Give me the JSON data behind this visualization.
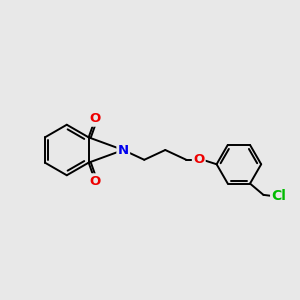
{
  "background_color": "#e8e8e8",
  "bond_color": "#000000",
  "N_color": "#0000ee",
  "O_color": "#ee0000",
  "Cl_color": "#00bb00",
  "line_width": 1.4,
  "font_size": 9.5,
  "figsize": [
    3.0,
    3.0
  ],
  "dpi": 100,
  "xlim": [
    0,
    10
  ],
  "ylim": [
    1,
    9
  ]
}
